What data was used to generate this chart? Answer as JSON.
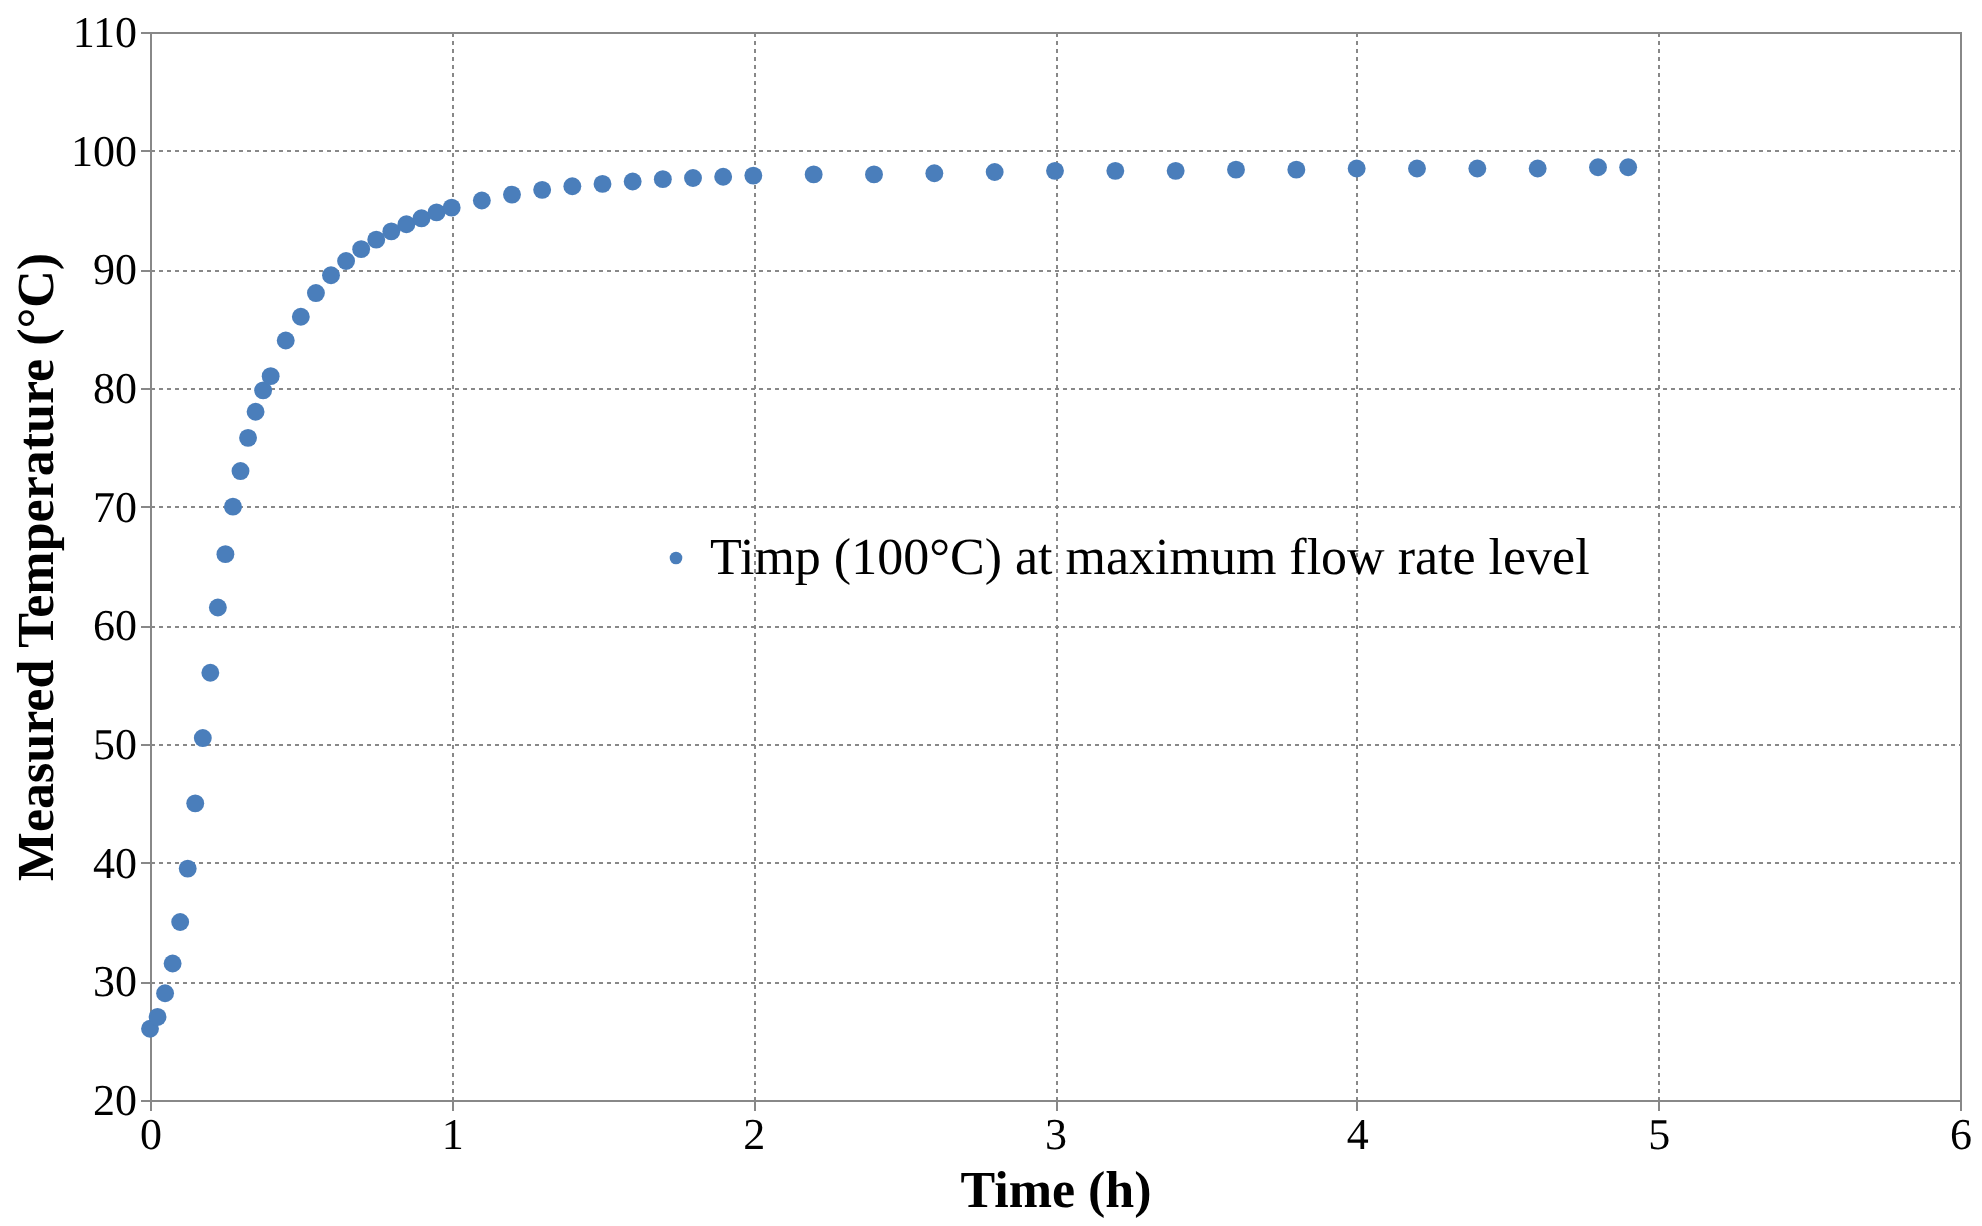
{
  "chart_data": {
    "type": "scatter",
    "xlabel": "Time (h)",
    "ylabel": "Measured  Temperature (°C)",
    "xlim": [
      0,
      6
    ],
    "xticks": [
      0,
      1,
      2,
      3,
      4,
      5,
      6
    ],
    "ylim": [
      20,
      110
    ],
    "yticks": [
      20,
      30,
      40,
      50,
      60,
      70,
      80,
      90,
      100,
      110
    ],
    "grid": true,
    "legend": "center",
    "marker": "circle",
    "series": [
      {
        "name": "Timp (100°C) at maximum flow rate level",
        "color": "#4a7ebb",
        "x": [
          0,
          0.025,
          0.05,
          0.075,
          0.1,
          0.125,
          0.15,
          0.175,
          0.2,
          0.225,
          0.25,
          0.275,
          0.3,
          0.325,
          0.35,
          0.375,
          0.4,
          0.45,
          0.5,
          0.55,
          0.6,
          0.65,
          0.7,
          0.75,
          0.8,
          0.85,
          0.9,
          0.95,
          1.0,
          1.1,
          1.2,
          1.3,
          1.4,
          1.5,
          1.6,
          1.7,
          1.8,
          1.9,
          2.0,
          2.2,
          2.4,
          2.6,
          2.8,
          3.0,
          3.2,
          3.4,
          3.6,
          3.8,
          4.0,
          4.2,
          4.4,
          4.6,
          4.8,
          4.9
        ],
        "values": [
          26,
          27,
          29,
          31.5,
          35,
          39.5,
          45,
          50.5,
          56,
          61.5,
          66,
          70,
          73,
          75.8,
          78,
          79.8,
          81,
          84,
          86,
          88,
          89.5,
          90.7,
          91.7,
          92.5,
          93.2,
          93.8,
          94.3,
          94.8,
          95.2,
          95.8,
          96.3,
          96.7,
          97.0,
          97.2,
          97.4,
          97.6,
          97.7,
          97.8,
          97.9,
          98.0,
          98.0,
          98.1,
          98.2,
          98.3,
          98.3,
          98.3,
          98.4,
          98.4,
          98.5,
          98.5,
          98.5,
          98.5,
          98.6,
          98.6
        ]
      }
    ]
  }
}
